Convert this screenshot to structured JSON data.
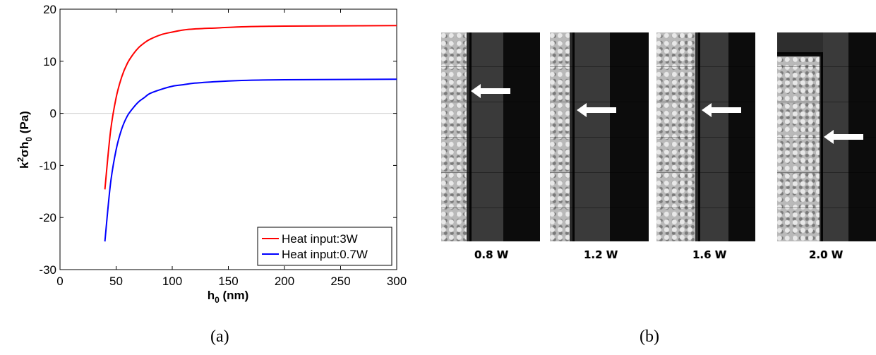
{
  "chart_data": {
    "type": "line",
    "xlabel_main": "h",
    "xlabel_sub": "0",
    "xlabel_rest": " (nm)",
    "ylabel_parts": {
      "k": "k",
      "sup": "2",
      "sigma": "σh",
      "sub": "0",
      "rest": " (Pa)"
    },
    "xlim": [
      0,
      300
    ],
    "ylim": [
      -30,
      20
    ],
    "x_ticks": [
      0,
      50,
      100,
      150,
      200,
      250,
      300
    ],
    "y_ticks": [
      20,
      10,
      0,
      -10,
      -20,
      -30
    ],
    "legend_position": "bottom-right",
    "zero_line": true,
    "series": [
      {
        "name": "Heat input:3W",
        "color": "#ff0000",
        "x": [
          40,
          45,
          50,
          55,
          60,
          65,
          70,
          75,
          80,
          90,
          100,
          110,
          120,
          140,
          160,
          180,
          200,
          250,
          300
        ],
        "y": [
          -14.6,
          -3.5,
          3.0,
          7.0,
          9.6,
          11.3,
          12.6,
          13.5,
          14.2,
          15.1,
          15.6,
          16.0,
          16.2,
          16.4,
          16.6,
          16.7,
          16.75,
          16.8,
          16.85
        ]
      },
      {
        "name": "Heat input:0.7W",
        "color": "#0000ff",
        "x": [
          40,
          45,
          50,
          55,
          60,
          65,
          70,
          75,
          80,
          90,
          100,
          110,
          120,
          140,
          160,
          180,
          200,
          250,
          300
        ],
        "y": [
          -24.6,
          -13.5,
          -7.0,
          -3.0,
          -0.5,
          1.0,
          2.2,
          3.0,
          3.8,
          4.6,
          5.2,
          5.5,
          5.8,
          6.1,
          6.3,
          6.4,
          6.45,
          6.5,
          6.55
        ]
      }
    ]
  },
  "figure_b": {
    "panels": [
      {
        "label": "0.8 W"
      },
      {
        "label": "1.2 W"
      },
      {
        "label": "1.6 W"
      },
      {
        "label": "2.0 W"
      }
    ]
  },
  "captions": {
    "a": "(a)",
    "b": "(b)"
  }
}
